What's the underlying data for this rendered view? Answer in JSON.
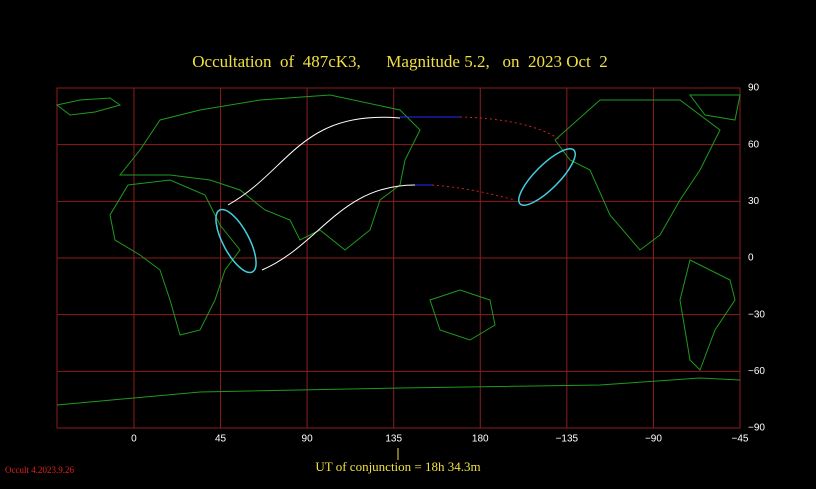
{
  "chart_data": {
    "type": "map",
    "title": "Occultation  of  487cK3,      Magnitude 5.2,   on  2023 Oct  2",
    "xlim": [
      -40,
      315
    ],
    "xticks": [
      0,
      45,
      90,
      135,
      180,
      {
        "value": 225,
        "label": "−135"
      },
      {
        "value": 270,
        "label": "−90"
      },
      {
        "value": 315,
        "label": "−45"
      }
    ],
    "ylim": [
      -90,
      90
    ],
    "yticks": [
      90,
      60,
      30,
      0,
      {
        "value": -30,
        "label": "−30"
      },
      {
        "value": -60,
        "label": "−60"
      },
      {
        "value": -90,
        "label": "−90"
      }
    ],
    "grid": true,
    "grid_color": "#8b1e1e",
    "annotation": "UT of conjunction = 18h 34.3m",
    "footer": "Occult 4.2023.9.26"
  }
}
